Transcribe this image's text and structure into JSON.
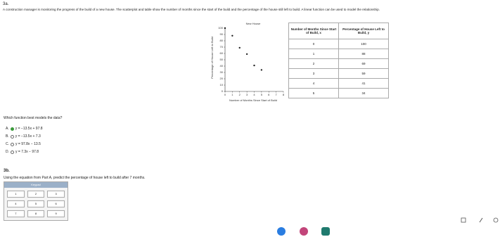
{
  "header": {
    "part": "3a.",
    "prompt": "A construction manager is monitoring the progress of the build of a new house. The scatterplot and table show the number of months since the start of the build and the percentage of the house still left to build. A linear function can be used to model the relationship."
  },
  "scatterplot": {
    "title": "New House",
    "x_label": "Number of Months Since Start of Build",
    "y_label": "Percentage of House Left to Build",
    "x": [
      0,
      1,
      2,
      3,
      4,
      5
    ],
    "y": [
      100,
      88,
      69,
      59,
      41,
      34
    ],
    "xlim": [
      0,
      8
    ],
    "xticks": [
      0,
      1,
      2,
      3,
      4,
      5,
      6,
      7,
      8
    ],
    "ylim": [
      0,
      100
    ],
    "yticks": [
      0,
      10,
      20,
      30,
      40,
      50,
      60,
      70,
      80,
      90,
      100
    ]
  },
  "table": {
    "headers": [
      "Number of Months Since Start of Build, x",
      "Percentage of House Left to Build, y"
    ],
    "rows": [
      [
        0,
        100
      ],
      [
        1,
        88
      ],
      [
        2,
        69
      ],
      [
        3,
        59
      ],
      [
        4,
        41
      ],
      [
        5,
        34
      ]
    ]
  },
  "question": {
    "text": "Which function best models the data?",
    "selected": 0,
    "options": [
      {
        "letter": "A.",
        "equation": "y = −13.5x + 97.8"
      },
      {
        "letter": "B.",
        "equation": "y = −13.5x + 7.3"
      },
      {
        "letter": "C.",
        "equation": "y = 97.8x − 13.5"
      },
      {
        "letter": "D.",
        "equation": "y = 7.3x − 97.8"
      }
    ]
  },
  "part_b": {
    "part": "3b.",
    "prompt": "Using the equation from Part A, predict the percentage of house left to build after 7 months.",
    "keypad_title": "Keypad",
    "keys": [
      "1",
      "2",
      "3",
      "4",
      "5",
      "6",
      "7",
      "8",
      "9"
    ]
  }
}
